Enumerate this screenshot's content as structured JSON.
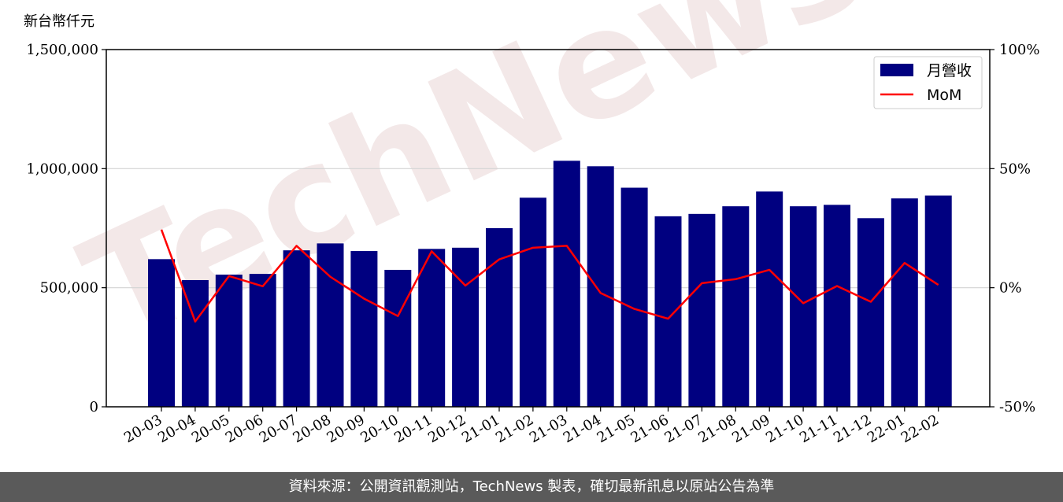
{
  "chart_data": {
    "type": "bar+line",
    "unit_label": "新台幣仟元",
    "categories": [
      "20-03",
      "20-04",
      "20-05",
      "20-06",
      "20-07",
      "20-08",
      "20-09",
      "20-10",
      "20-11",
      "20-12",
      "21-01",
      "21-02",
      "21-03",
      "21-04",
      "21-05",
      "21-06",
      "21-07",
      "21-08",
      "21-09",
      "21-10",
      "21-11",
      "21-12",
      "22-01",
      "22-02"
    ],
    "series": [
      {
        "name": "月營收",
        "type": "bar",
        "axis": "left",
        "color": "#000080",
        "values": [
          620000,
          532000,
          555000,
          558000,
          657000,
          686000,
          654000,
          575000,
          663000,
          668000,
          750000,
          878000,
          1033000,
          1010000,
          920000,
          800000,
          810000,
          842000,
          904000,
          842000,
          848000,
          792000,
          875000,
          887000
        ]
      },
      {
        "name": "MoM",
        "type": "line",
        "axis": "right",
        "color": "#ff0000",
        "values": [
          24.4,
          -14.2,
          4.9,
          0.6,
          17.6,
          4.6,
          -4.6,
          -11.9,
          15.3,
          0.9,
          11.9,
          16.8,
          17.6,
          -2.2,
          -8.9,
          -13.0,
          1.9,
          3.6,
          7.5,
          -6.5,
          0.7,
          -5.9,
          10.4,
          1.2
        ]
      }
    ],
    "left_axis": {
      "ylim": [
        0,
        1500000
      ],
      "ticks": [
        "0",
        "500,000",
        "1,000,000",
        "1,500,000"
      ],
      "tick_values": [
        0,
        500000,
        1000000,
        1500000
      ]
    },
    "right_axis": {
      "ylim": [
        -50,
        100
      ],
      "ticks": [
        "-50%",
        "0%",
        "50%",
        "100%"
      ],
      "tick_values": [
        -50,
        0,
        50,
        100
      ]
    },
    "grid": "horizontal",
    "legend": "top-right"
  },
  "watermark": "TechNews",
  "footer": {
    "text": "資料來源：公開資訊觀測站，TechNews 製表，確切最新訊息以原站公告為準"
  }
}
